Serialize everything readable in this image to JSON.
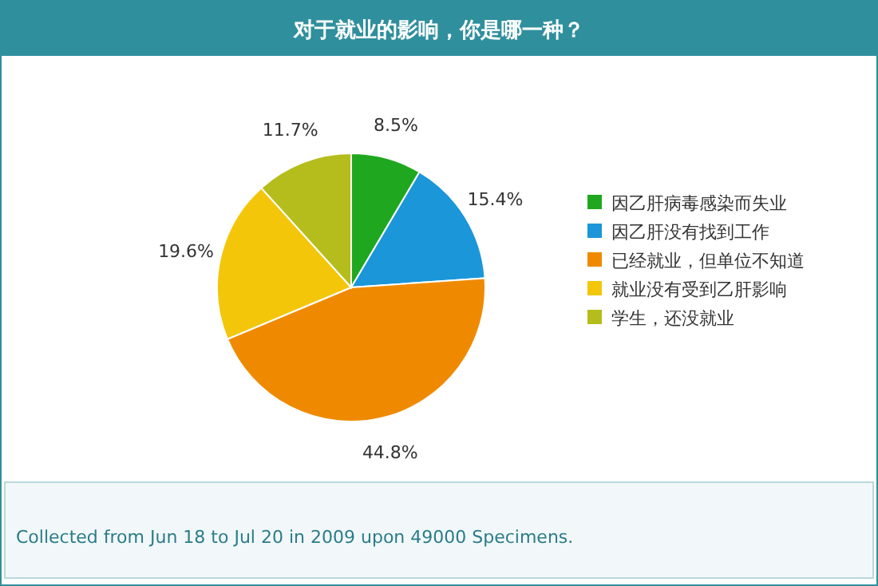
{
  "chart_data": {
    "type": "pie",
    "title": "对于就业的影响，你是哪一种？",
    "categories": [
      "因乙肝病毒感染而失业",
      "因乙肝没有找到工作",
      "已经就业，但单位不知道",
      "就业没有受到乙肝影响",
      "学生，还没就业"
    ],
    "values": [
      8.5,
      15.4,
      44.8,
      19.6,
      11.7
    ],
    "colors": [
      "#1fa81f",
      "#1b96d8",
      "#ef8a00",
      "#f4c60a",
      "#b5bd1c"
    ],
    "value_labels": [
      "8.5%",
      "15.4%",
      "44.8%",
      "19.6%",
      "11.7%"
    ],
    "legend": "right",
    "annotations": [
      "Collected from Jun 18 to Jul 20 in 2009 upon 49000 Specimens."
    ]
  }
}
